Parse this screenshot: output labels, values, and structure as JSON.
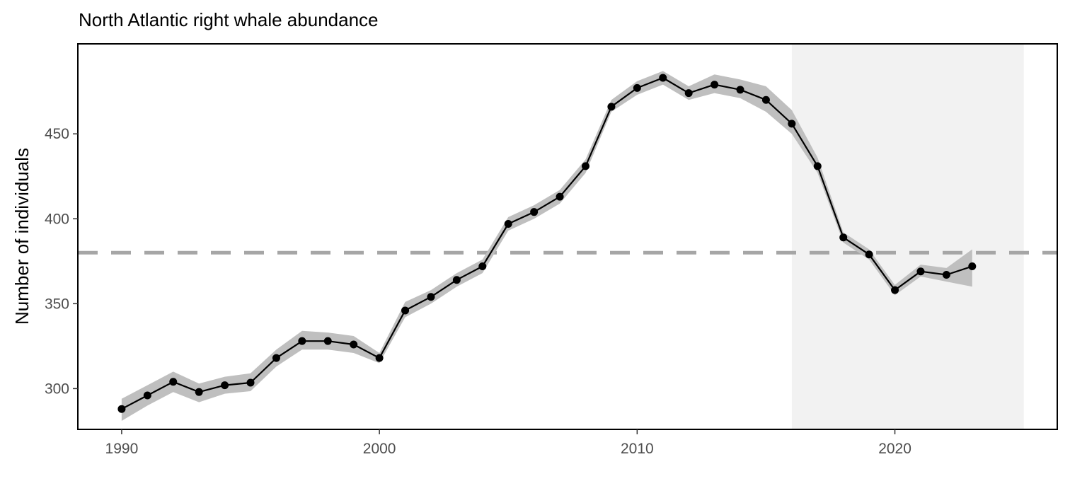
{
  "chart_data": {
    "type": "line",
    "title": "North Atlantic right whale abundance",
    "xlabel": "",
    "ylabel": "Number of individuals",
    "xlim": [
      1988.3,
      2026.3
    ],
    "ylim": [
      276,
      503
    ],
    "x_ticks": [
      1990,
      2000,
      2010,
      2020
    ],
    "y_ticks": [
      300,
      350,
      400,
      450
    ],
    "grid": false,
    "reference_line": {
      "y": 380,
      "style": "dashed",
      "color": "#a6a6a6"
    },
    "shaded_region": {
      "x_start": 2016,
      "x_end": 2025,
      "color": "#f2f2f2"
    },
    "series": [
      {
        "x": [
          1990,
          1991,
          1992,
          1993,
          1994,
          1995,
          1996,
          1997,
          1998,
          1999,
          2000,
          2001,
          2002,
          2003,
          2004,
          2005,
          2006,
          2007,
          2008,
          2009,
          2010,
          2011,
          2012,
          2013,
          2014,
          2015,
          2016,
          2017,
          2018,
          2019,
          2020,
          2021,
          2022,
          2023
        ],
        "y": [
          288,
          296,
          304,
          298,
          302,
          303.5,
          318,
          328,
          328,
          326,
          318,
          346,
          354,
          364,
          372,
          397,
          404,
          413,
          431,
          466,
          477,
          483,
          474,
          479,
          476,
          470,
          456,
          431,
          389,
          379,
          358,
          369,
          367,
          372
        ],
        "lower": [
          281,
          290,
          298,
          292,
          297,
          298.5,
          313,
          323,
          323,
          321,
          315,
          342,
          350,
          360,
          368,
          393,
          400,
          409,
          427,
          463,
          473,
          479,
          470,
          474,
          471,
          463,
          450,
          427,
          386,
          376,
          355,
          366,
          363,
          360
        ],
        "upper": [
          294,
          302,
          310,
          303,
          307,
          309,
          323,
          334,
          333,
          331,
          321,
          351,
          358,
          368,
          376,
          401,
          408,
          417,
          435,
          470,
          481,
          487,
          478,
          485,
          482,
          478,
          464,
          436,
          392,
          382,
          361,
          373,
          371,
          382
        ],
        "color": "#000000",
        "band_color": "#bfbfbf"
      }
    ]
  }
}
